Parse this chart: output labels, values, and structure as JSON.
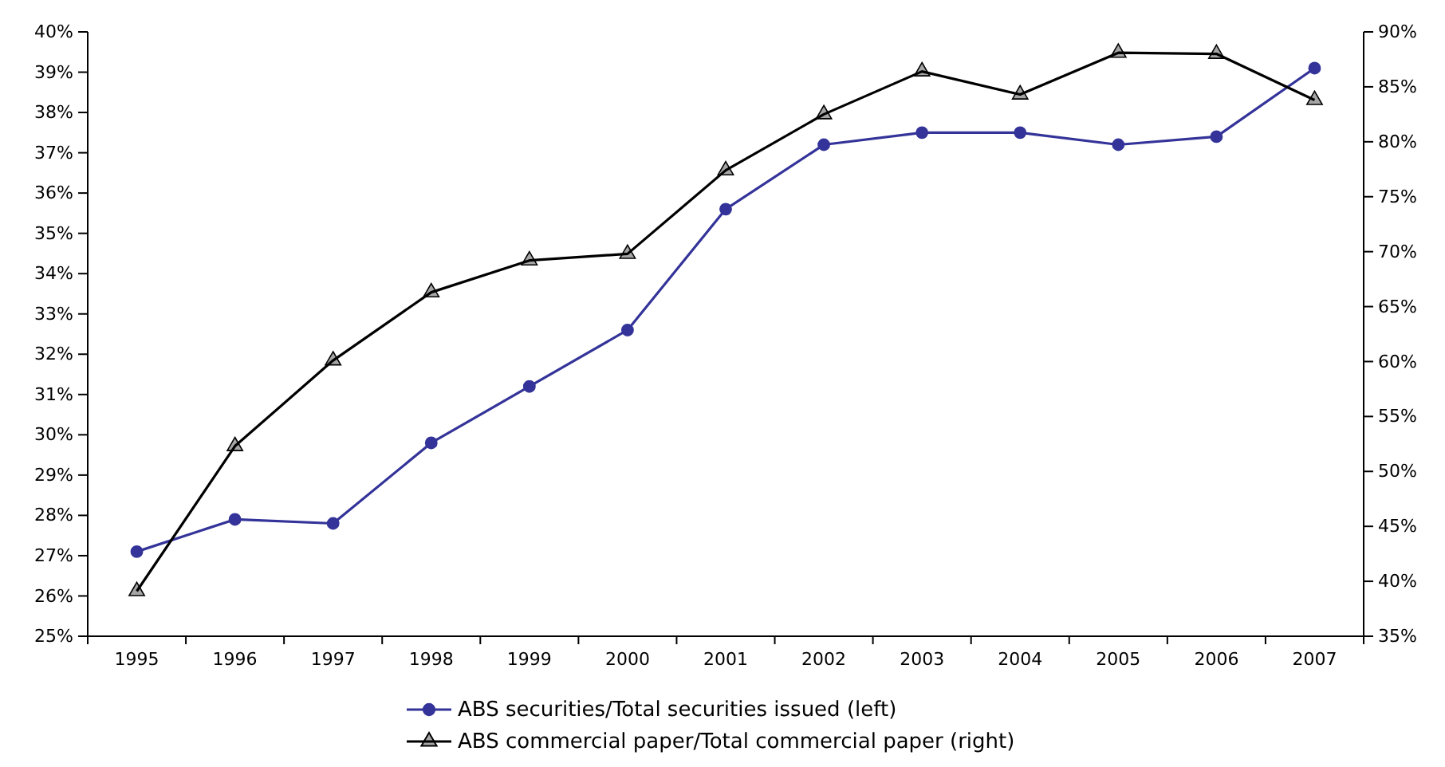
{
  "chart_data": {
    "type": "line",
    "categories": [
      "1995",
      "1996",
      "1997",
      "1998",
      "1999",
      "2000",
      "2001",
      "2002",
      "2003",
      "2004",
      "2005",
      "2006",
      "2007"
    ],
    "series": [
      {
        "name": "ABS securities/Total securities issued (left)",
        "color": "#333399",
        "marker": "circle",
        "values": [
          27.1,
          27.9,
          27.8,
          29.8,
          31.2,
          32.6,
          35.6,
          37.2,
          37.5,
          37.5,
          37.2,
          37.4,
          39.1
        ]
      },
      {
        "name": "ABS commercial paper/Total commercial paper (right)",
        "color": "#000000",
        "marker": "triangle",
        "axis": "y2",
        "values": [
          39.1,
          52.3,
          60.1,
          66.3,
          69.2,
          69.8,
          77.4,
          82.5,
          86.4,
          84.3,
          88.1,
          88.0,
          83.8
        ]
      }
    ],
    "ylim": [
      25,
      40
    ],
    "yticks": [
      {
        "value": 25,
        "label": "25%"
      },
      {
        "value": 26,
        "label": "26%"
      },
      {
        "value": 27,
        "label": "27%"
      },
      {
        "value": 28,
        "label": "28%"
      },
      {
        "value": 29,
        "label": "29%"
      },
      {
        "value": 30,
        "label": "30%"
      },
      {
        "value": 31,
        "label": "31%"
      },
      {
        "value": 32,
        "label": "32%"
      },
      {
        "value": 33,
        "label": "33%"
      },
      {
        "value": 34,
        "label": "34%"
      },
      {
        "value": 35,
        "label": "35%"
      },
      {
        "value": 36,
        "label": "36%"
      },
      {
        "value": 37,
        "label": "37%"
      },
      {
        "value": 38,
        "label": "38%"
      },
      {
        "value": 39,
        "label": "39%"
      },
      {
        "value": 40,
        "label": "40%"
      }
    ],
    "y2lim": [
      35,
      90
    ],
    "y2ticks": [
      {
        "value": 35,
        "label": "35%"
      },
      {
        "value": 40,
        "label": "40%"
      },
      {
        "value": 45,
        "label": "45%"
      },
      {
        "value": 50,
        "label": "50%"
      },
      {
        "value": 55,
        "label": "55%"
      },
      {
        "value": 60,
        "label": "60%"
      },
      {
        "value": 65,
        "label": "65%"
      },
      {
        "value": 70,
        "label": "70%"
      },
      {
        "value": 75,
        "label": "75%"
      },
      {
        "value": 80,
        "label": "80%"
      },
      {
        "value": 85,
        "label": "85%"
      },
      {
        "value": 90,
        "label": "90%"
      }
    ],
    "grid": false,
    "legend": "bottom",
    "line_style": "solid"
  }
}
